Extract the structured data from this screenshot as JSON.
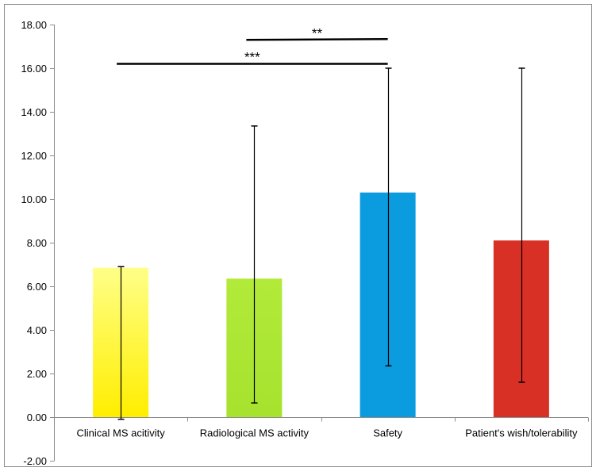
{
  "chart_data": {
    "type": "bar",
    "categories": [
      "Clinical MS acitivity",
      "Radiological MS activity",
      "Safety",
      "Patient's wish/tolerability"
    ],
    "values": [
      6.85,
      6.35,
      10.3,
      8.1
    ],
    "error_low": [
      -0.1,
      0.65,
      2.35,
      1.6
    ],
    "error_high": [
      6.9,
      13.35,
      16.0,
      16.0
    ],
    "bar_colors": [
      "#ffee00",
      "#a6e22e",
      "#0b9ce0",
      "#d93025"
    ],
    "bar_color_top": [
      "#ffff88",
      "#b2ea3a",
      "#0b9ce0",
      "#d93025"
    ],
    "ylim": [
      -2,
      18
    ],
    "yticks": [
      "-2.00",
      "0.00",
      "2.00",
      "4.00",
      "6.00",
      "8.00",
      "10.00",
      "12.00",
      "14.00",
      "16.00",
      "18.00"
    ],
    "grid": false,
    "significance": [
      {
        "from": 0,
        "to": 2,
        "level": 16.2,
        "label": "***"
      },
      {
        "from": 1,
        "to": 2,
        "level": 17.3,
        "label": "**"
      }
    ],
    "title": "",
    "xlabel": "",
    "ylabel": ""
  }
}
